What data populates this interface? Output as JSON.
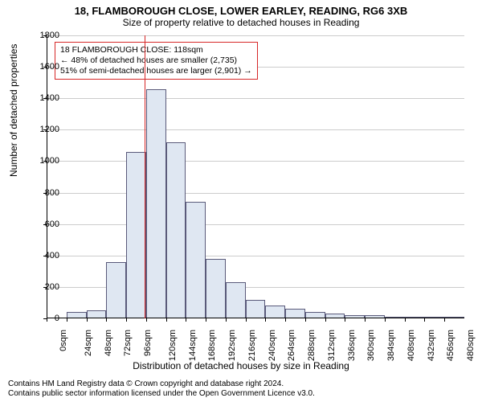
{
  "title_main": "18, FLAMBOROUGH CLOSE, LOWER EARLEY, READING, RG6 3XB",
  "title_sub": "Size of property relative to detached houses in Reading",
  "y_axis_label": "Number of detached properties",
  "x_axis_label": "Distribution of detached houses by size in Reading",
  "footer_line1": "Contains HM Land Registry data © Crown copyright and database right 2024.",
  "footer_line2": "Contains public sector information licensed under the Open Government Licence v3.0.",
  "annotation": {
    "line1": "18 FLAMBOROUGH CLOSE: 118sqm",
    "line2": "← 48% of detached houses are smaller (2,735)",
    "line3": "51% of semi-detached houses are larger (2,901) →"
  },
  "chart": {
    "type": "histogram",
    "ylim": [
      0,
      1800
    ],
    "ytick_step": 200,
    "xlim": [
      0,
      504
    ],
    "xtick_step": 24,
    "xtick_suffix": "sqm",
    "bar_fill": "#dfe7f2",
    "bar_stroke": "#5a5a7a",
    "grid_color": "#cccccc",
    "background_color": "#ffffff",
    "ref_line_x": 118,
    "ref_line_color": "#d62728",
    "annotation_border": "#d62728",
    "title_fontsize": 13,
    "subtitle_fontsize": 12,
    "axis_label_fontsize": 12,
    "tick_fontsize": 11,
    "annotation_fontsize": 10.5,
    "footer_fontsize": 10,
    "bins": [
      {
        "x": 0,
        "count": 0
      },
      {
        "x": 24,
        "count": 40
      },
      {
        "x": 48,
        "count": 50
      },
      {
        "x": 72,
        "count": 360
      },
      {
        "x": 96,
        "count": 1060
      },
      {
        "x": 120,
        "count": 1460
      },
      {
        "x": 144,
        "count": 1120
      },
      {
        "x": 168,
        "count": 740
      },
      {
        "x": 192,
        "count": 380
      },
      {
        "x": 216,
        "count": 230
      },
      {
        "x": 240,
        "count": 120
      },
      {
        "x": 264,
        "count": 80
      },
      {
        "x": 288,
        "count": 60
      },
      {
        "x": 312,
        "count": 40
      },
      {
        "x": 336,
        "count": 30
      },
      {
        "x": 360,
        "count": 20
      },
      {
        "x": 384,
        "count": 20
      },
      {
        "x": 408,
        "count": 10
      },
      {
        "x": 432,
        "count": 10
      },
      {
        "x": 456,
        "count": 5
      },
      {
        "x": 480,
        "count": 5
      }
    ]
  }
}
